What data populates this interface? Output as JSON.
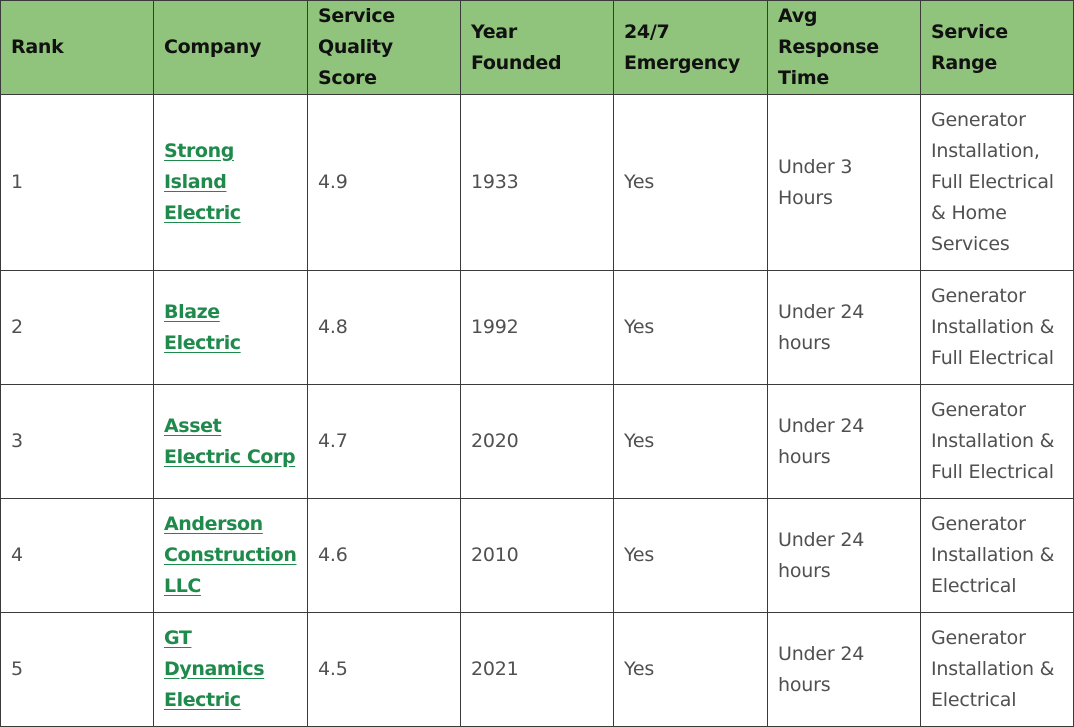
{
  "headers": {
    "rank": "Rank",
    "company": "Company",
    "score": "Service Quality Score",
    "year": "Year Founded",
    "emergency": "24/7 Emergency",
    "response": "Avg Response Time",
    "range": "Service Range"
  },
  "rows": [
    {
      "rank": "1",
      "company": "Strong Island Electric",
      "score": "4.9",
      "year": "1933",
      "emergency": "Yes",
      "response": "Under 3 Hours",
      "range": "Generator Installation, Full Electrical & Home Services"
    },
    {
      "rank": "2",
      "company": "Blaze Electric",
      "score": "4.8",
      "year": "1992",
      "emergency": "Yes",
      "response": "Under 24 hours",
      "range": "Generator Installation & Full Electrical"
    },
    {
      "rank": "3",
      "company": "Asset Electric Corp",
      "score": "4.7",
      "year": "2020",
      "emergency": "Yes",
      "response": "Under 24 hours",
      "range": "Generator Installation & Full Electrical"
    },
    {
      "rank": "4",
      "company": "Anderson Construction LLC",
      "score": "4.6",
      "year": "2010",
      "emergency": "Yes",
      "response": "Under 24 hours",
      "range": "Generator Installation & Electrical"
    },
    {
      "rank": "5",
      "company": "GT Dynamics Electric",
      "score": "4.5",
      "year": "2021",
      "emergency": "Yes",
      "response": "Under 24 hours",
      "range": "Generator Installation & Electrical"
    }
  ],
  "colors": {
    "header_bg": "#90c47c",
    "link": "#1f8a4c",
    "cell_text": "#505050",
    "border": "#3a3a3a"
  }
}
